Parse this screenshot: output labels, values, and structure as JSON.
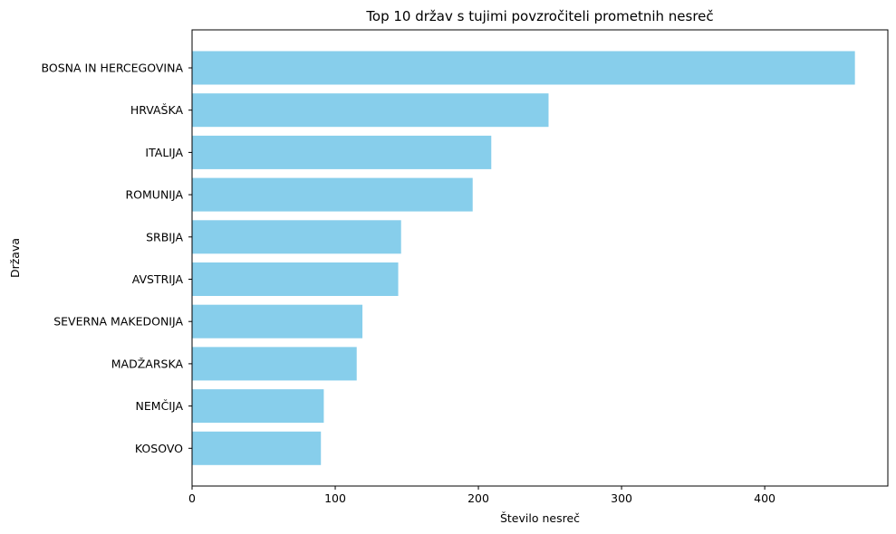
{
  "chart_data": {
    "type": "bar",
    "orientation": "horizontal",
    "title": "Top 10 držav s tujimi povzročiteli prometnih nesreč",
    "xlabel": "Število nesreč",
    "ylabel": "Država",
    "categories": [
      "BOSNA IN HERCEGOVINA",
      "HRVAŠKA",
      "ITALIJA",
      "ROMUNIJA",
      "SRBIJA",
      "AVSTRIJA",
      "SEVERNA MAKEDONIJA",
      "MADŽARSKA",
      "NEMČIJA",
      "KOSOVO"
    ],
    "values": [
      463,
      249,
      209,
      196,
      146,
      144,
      119,
      115,
      92,
      90
    ],
    "xlim": [
      0,
      486
    ],
    "xticks": [
      0,
      100,
      200,
      300,
      400
    ],
    "grid": false,
    "bar_color": "#87CEEB"
  }
}
